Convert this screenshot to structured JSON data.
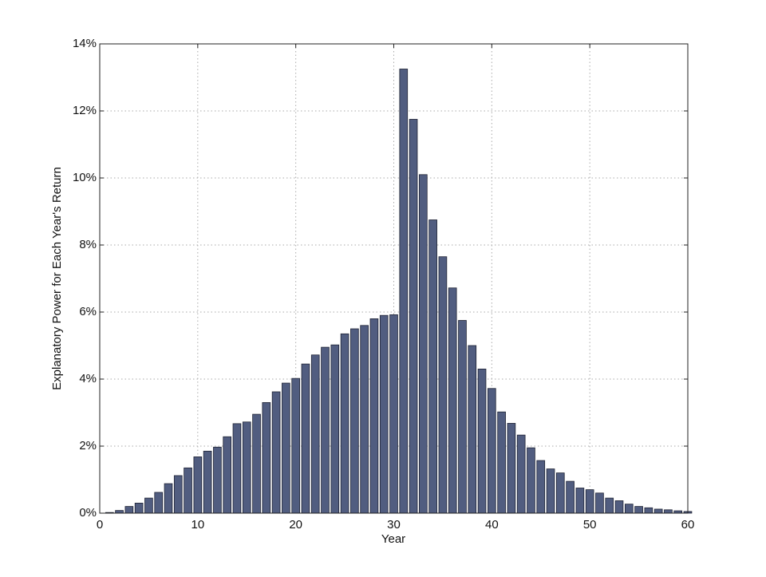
{
  "chart_data": {
    "type": "bar",
    "x_label": "Year",
    "y_label": "Explanatory Power for Each Year's Return",
    "x": [
      1,
      2,
      3,
      4,
      5,
      6,
      7,
      8,
      9,
      10,
      11,
      12,
      13,
      14,
      15,
      16,
      17,
      18,
      19,
      20,
      21,
      22,
      23,
      24,
      25,
      26,
      27,
      28,
      29,
      30,
      31,
      32,
      33,
      34,
      35,
      36,
      37,
      38,
      39,
      40,
      41,
      42,
      43,
      44,
      45,
      46,
      47,
      48,
      49,
      50,
      51,
      52,
      53,
      54,
      55,
      56,
      57,
      58,
      59,
      60
    ],
    "values": [
      0.02,
      0.08,
      0.2,
      0.3,
      0.45,
      0.62,
      0.88,
      1.12,
      1.35,
      1.68,
      1.85,
      1.97,
      2.28,
      2.67,
      2.72,
      2.95,
      3.3,
      3.62,
      3.88,
      4.02,
      4.45,
      4.72,
      4.95,
      5.02,
      5.35,
      5.5,
      5.6,
      5.8,
      5.9,
      5.92,
      13.25,
      11.75,
      10.1,
      8.75,
      7.65,
      6.72,
      5.75,
      5.0,
      4.3,
      3.72,
      3.02,
      2.68,
      2.33,
      1.95,
      1.57,
      1.32,
      1.2,
      0.95,
      0.75,
      0.7,
      0.6,
      0.45,
      0.37,
      0.27,
      0.2,
      0.16,
      0.12,
      0.1,
      0.07,
      0.05
    ],
    "color": "#515d80",
    "xlim": [
      0,
      60
    ],
    "xticks": [
      0,
      10,
      20,
      30,
      40,
      50,
      60
    ],
    "ylim": [
      0,
      14
    ],
    "yticks": [
      {
        "value": 0,
        "label": "0%"
      },
      {
        "value": 2,
        "label": "2%"
      },
      {
        "value": 4,
        "label": "4%"
      },
      {
        "value": 6,
        "label": "6%"
      },
      {
        "value": 8,
        "label": "8%"
      },
      {
        "value": 10,
        "label": "10%"
      },
      {
        "value": 12,
        "label": "12%"
      },
      {
        "value": 14,
        "label": "14%"
      }
    ],
    "grid": true
  }
}
